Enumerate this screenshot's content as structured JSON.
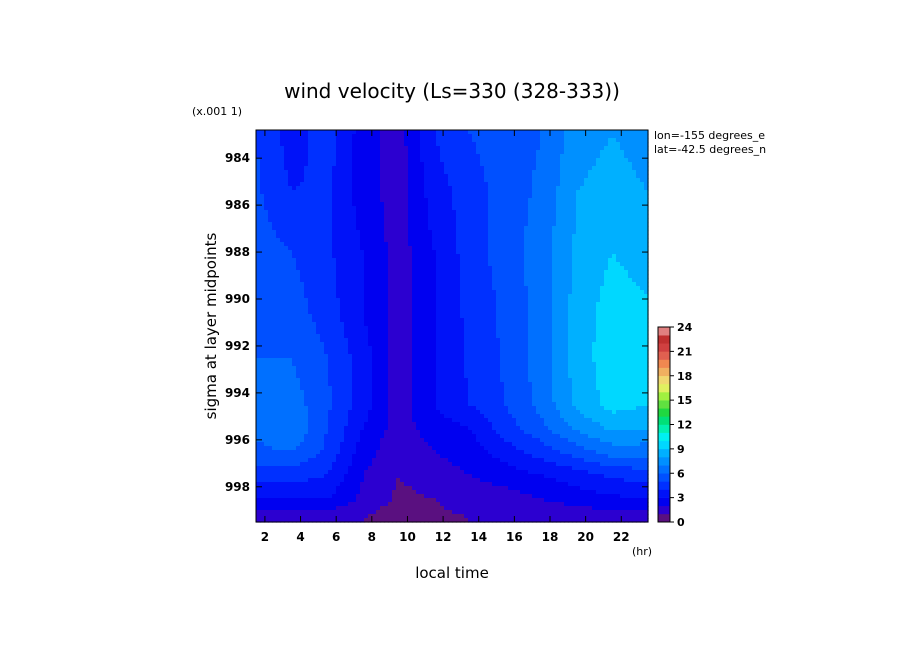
{
  "chart_data": {
    "type": "heatmap",
    "title": "wind velocity (Ls=330 (328-333))",
    "xlabel": "local time",
    "x_unit": "(hr)",
    "ylabel": "sigma at layer midpoints",
    "y_scale_note": "(x.001 1)",
    "annotations": [
      "lon=-155 degrees_e",
      "lat=-42.5 degrees_n"
    ],
    "x_ticks": [
      2,
      4,
      6,
      8,
      10,
      12,
      14,
      16,
      18,
      20,
      22
    ],
    "xlim": [
      1.5,
      23.5
    ],
    "y_ticks": [
      984,
      986,
      988,
      990,
      992,
      994,
      996,
      998
    ],
    "ylim": [
      982.8,
      999.5
    ],
    "y_inverted": true,
    "x": [
      1.5,
      3.5,
      5.5,
      7.5,
      9.5,
      11.5,
      13.5,
      15.5,
      17.5,
      19.5,
      21.5,
      23.5
    ],
    "y": [
      983.0,
      985.5,
      988.0,
      990.5,
      992.5,
      994.5,
      995.5,
      996.5,
      997.5,
      998.5,
      999.3
    ],
    "z": [
      [
        5.0,
        3.5,
        4.5,
        2.5,
        1.5,
        4.0,
        5.0,
        5.5,
        6.0,
        7.5,
        8.0,
        7.5
      ],
      [
        5.2,
        4.0,
        4.2,
        2.5,
        1.5,
        3.5,
        4.5,
        5.5,
        6.2,
        8.0,
        8.5,
        8.0
      ],
      [
        5.5,
        5.0,
        4.2,
        3.0,
        1.5,
        3.0,
        4.5,
        5.5,
        6.5,
        8.2,
        9.0,
        8.5
      ],
      [
        5.8,
        5.5,
        4.5,
        3.0,
        1.5,
        3.0,
        4.3,
        5.2,
        6.5,
        8.4,
        9.5,
        9.2
      ],
      [
        6.0,
        6.0,
        5.0,
        3.5,
        1.5,
        3.0,
        4.2,
        5.2,
        6.5,
        8.5,
        9.6,
        9.4
      ],
      [
        6.2,
        6.5,
        5.2,
        3.5,
        1.5,
        3.0,
        4.0,
        5.0,
        6.3,
        8.2,
        9.4,
        9.0
      ],
      [
        6.2,
        7.0,
        5.0,
        3.0,
        1.5,
        2.5,
        3.0,
        4.5,
        5.7,
        7.2,
        8.2,
        8.0
      ],
      [
        5.8,
        6.0,
        4.8,
        2.5,
        1.2,
        2.0,
        2.5,
        3.5,
        4.5,
        5.5,
        6.5,
        6.5
      ],
      [
        4.5,
        4.5,
        4.0,
        2.0,
        1.0,
        1.5,
        2.0,
        2.5,
        3.0,
        3.5,
        4.2,
        4.5
      ],
      [
        3.0,
        3.0,
        3.0,
        1.8,
        0.8,
        1.0,
        1.5,
        1.5,
        2.0,
        2.5,
        2.8,
        3.0
      ],
      [
        1.5,
        1.5,
        1.5,
        1.0,
        0.5,
        0.8,
        1.0,
        1.0,
        1.2,
        1.3,
        1.5,
        1.5
      ]
    ],
    "colorbar": {
      "min": 0,
      "max": 24,
      "step": 1,
      "labels": [
        0,
        3,
        6,
        9,
        12,
        15,
        18,
        21,
        24
      ],
      "colors": [
        "#5a1080",
        "#2c00d0",
        "#0000f0",
        "#0012f8",
        "#0030ff",
        "#0050ff",
        "#0070ff",
        "#0090ff",
        "#00b0ff",
        "#00d8ff",
        "#00f0f0",
        "#00f0b0",
        "#00e078",
        "#20d840",
        "#60e040",
        "#a0f040",
        "#e0f060",
        "#f0d870",
        "#f0b060",
        "#f08850",
        "#e06050",
        "#d04040",
        "#c03030",
        "#e08080"
      ]
    }
  }
}
